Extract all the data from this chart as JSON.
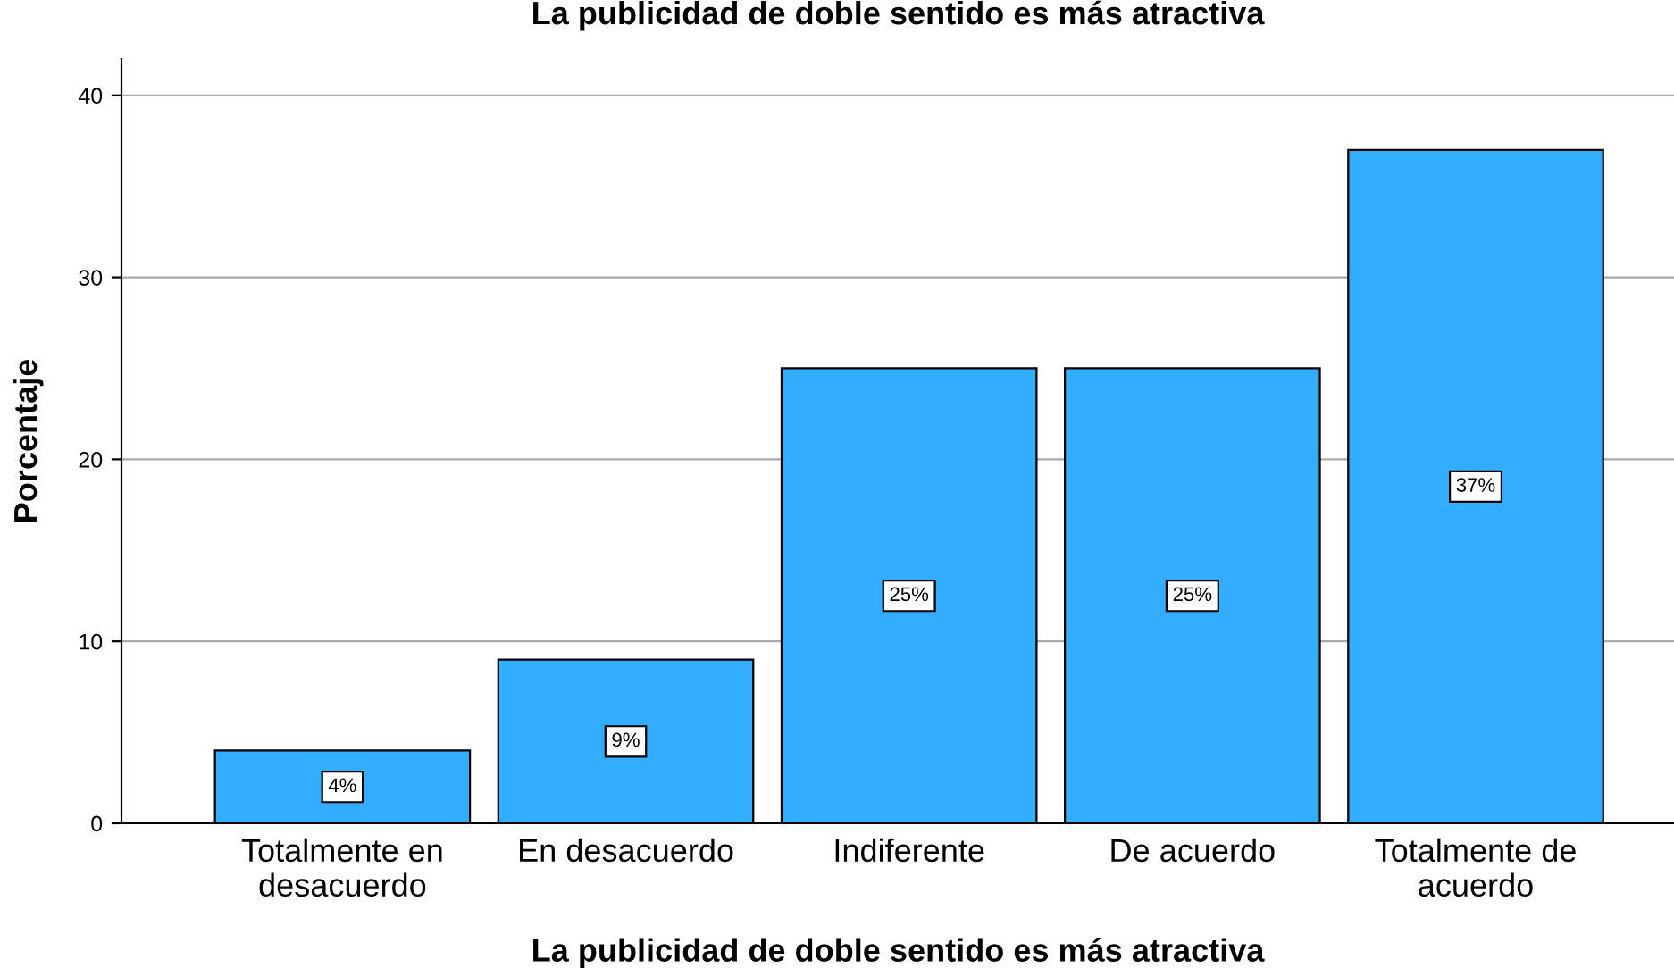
{
  "chart_data": {
    "type": "bar",
    "title": "La publicidad de doble sentido es más atractiva",
    "xlabel": "La publicidad de doble sentido es más atractiva",
    "ylabel": "Porcentaje",
    "categories": [
      "Totalmente en\ndesacuerdo",
      "En desacuerdo",
      "Indiferente",
      "De acuerdo",
      "Totalmente de\nacuerdo"
    ],
    "values": [
      4,
      9,
      25,
      25,
      37
    ],
    "value_labels": [
      "4%",
      "9%",
      "25%",
      "25%",
      "37%"
    ],
    "color": "#33adff",
    "ylim": [
      0,
      42
    ],
    "yticks": [
      0,
      10,
      20,
      30,
      40
    ],
    "grid": "y"
  }
}
